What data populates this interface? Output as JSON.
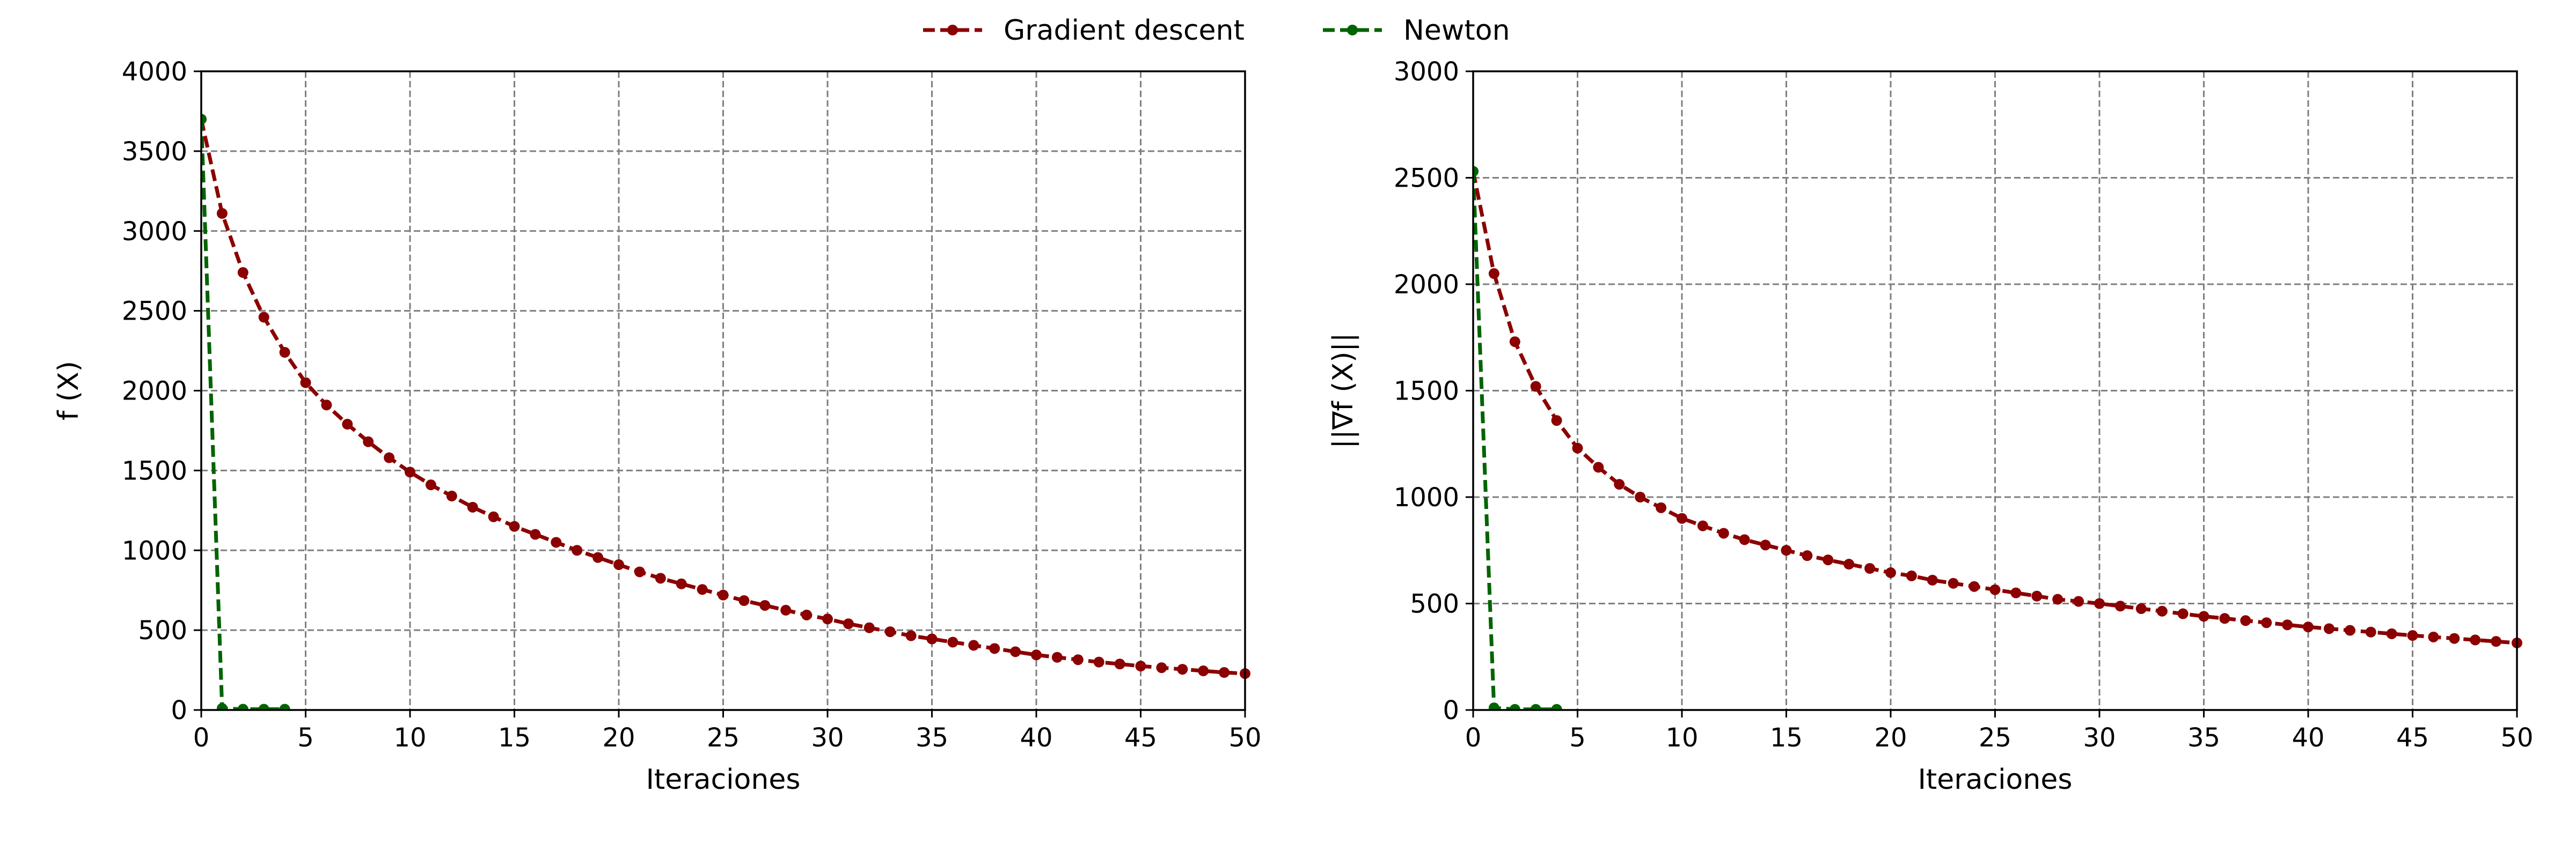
{
  "legend": {
    "placement": "top-center",
    "items": [
      {
        "label": "Gradient descent",
        "color": "#8b0000",
        "series": 0
      },
      {
        "label": "Newton",
        "color": "#006400",
        "series": 1
      }
    ]
  },
  "chart_data": [
    {
      "type": "line",
      "xlabel": "Iteraciones",
      "ylabel": "f (X)",
      "xlim": [
        0,
        50
      ],
      "ylim": [
        0,
        4000
      ],
      "xticks": [
        0,
        5,
        10,
        15,
        20,
        25,
        30,
        35,
        40,
        45,
        50
      ],
      "yticks": [
        0,
        500,
        1000,
        1500,
        2000,
        2500,
        3000,
        3500,
        4000
      ],
      "grid": true,
      "series": [
        {
          "name": "Gradient descent",
          "color": "#8b0000",
          "x": [
            0,
            1,
            2,
            3,
            4,
            5,
            6,
            7,
            8,
            9,
            10,
            11,
            12,
            13,
            14,
            15,
            16,
            17,
            18,
            19,
            20,
            21,
            22,
            23,
            24,
            25,
            26,
            27,
            28,
            29,
            30,
            31,
            32,
            33,
            34,
            35,
            36,
            37,
            38,
            39,
            40,
            41,
            42,
            43,
            44,
            45,
            46,
            47,
            48,
            49,
            50
          ],
          "y": [
            3700,
            3110,
            2740,
            2460,
            2240,
            2050,
            1910,
            1790,
            1680,
            1580,
            1490,
            1410,
            1340,
            1270,
            1210,
            1150,
            1100,
            1050,
            1000,
            955,
            910,
            865,
            825,
            790,
            755,
            720,
            685,
            655,
            625,
            595,
            570,
            540,
            515,
            490,
            465,
            445,
            425,
            405,
            385,
            365,
            345,
            330,
            315,
            300,
            288,
            275,
            265,
            255,
            245,
            235,
            228
          ]
        },
        {
          "name": "Newton",
          "color": "#006400",
          "x": [
            0,
            1,
            2,
            3,
            4
          ],
          "y": [
            3700,
            10,
            5,
            5,
            5
          ]
        }
      ]
    },
    {
      "type": "line",
      "xlabel": "Iteraciones",
      "ylabel": "||∇f (X)||",
      "xlim": [
        0,
        50
      ],
      "ylim": [
        0,
        3000
      ],
      "xticks": [
        0,
        5,
        10,
        15,
        20,
        25,
        30,
        35,
        40,
        45,
        50
      ],
      "yticks": [
        0,
        500,
        1000,
        1500,
        2000,
        2500,
        3000
      ],
      "grid": true,
      "series": [
        {
          "name": "Gradient descent",
          "color": "#8b0000",
          "x": [
            0,
            1,
            2,
            3,
            4,
            5,
            6,
            7,
            8,
            9,
            10,
            11,
            12,
            13,
            14,
            15,
            16,
            17,
            18,
            19,
            20,
            21,
            22,
            23,
            24,
            25,
            26,
            27,
            28,
            29,
            30,
            31,
            32,
            33,
            34,
            35,
            36,
            37,
            38,
            39,
            40,
            41,
            42,
            43,
            44,
            45,
            46,
            47,
            48,
            49,
            50
          ],
          "y": [
            2530,
            2050,
            1730,
            1520,
            1360,
            1230,
            1140,
            1060,
            1000,
            950,
            900,
            865,
            830,
            800,
            775,
            750,
            725,
            705,
            685,
            665,
            645,
            630,
            610,
            595,
            580,
            565,
            550,
            535,
            520,
            510,
            500,
            488,
            476,
            464,
            452,
            440,
            430,
            420,
            410,
            400,
            390,
            382,
            374,
            366,
            358,
            350,
            343,
            336,
            329,
            322,
            315
          ]
        },
        {
          "name": "Newton",
          "color": "#006400",
          "x": [
            0,
            1,
            2,
            3,
            4
          ],
          "y": [
            2530,
            10,
            3,
            3,
            3
          ]
        }
      ]
    }
  ]
}
